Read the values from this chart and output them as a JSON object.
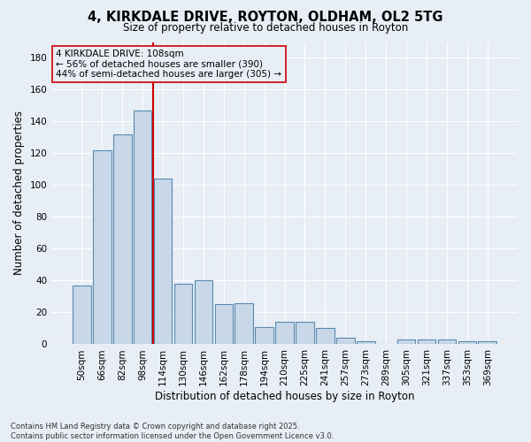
{
  "title_line1": "4, KIRKDALE DRIVE, ROYTON, OLDHAM, OL2 5TG",
  "title_line2": "Size of property relative to detached houses in Royton",
  "xlabel": "Distribution of detached houses by size in Royton",
  "ylabel": "Number of detached properties",
  "categories": [
    "50sqm",
    "66sqm",
    "82sqm",
    "98sqm",
    "114sqm",
    "130sqm",
    "146sqm",
    "162sqm",
    "178sqm",
    "194sqm",
    "210sqm",
    "225sqm",
    "241sqm",
    "257sqm",
    "273sqm",
    "289sqm",
    "305sqm",
    "321sqm",
    "337sqm",
    "353sqm",
    "369sqm"
  ],
  "values": [
    37,
    122,
    132,
    147,
    104,
    38,
    40,
    25,
    26,
    11,
    14,
    14,
    10,
    4,
    2,
    0,
    3,
    3,
    3,
    2,
    2
  ],
  "bar_color": "#c8d8e8",
  "bar_edge_color": "#5a8ab0",
  "annotation_line1": "4 KIRKDALE DRIVE: 108sqm",
  "annotation_line2": "← 56% of detached houses are smaller (390)",
  "annotation_line3": "44% of semi-detached houses are larger (305) →",
  "vline_x": 3.5,
  "vline_color": "#cc0000",
  "box_color": "#cc0000",
  "bg_color": "#e8eef5",
  "grid_color": "#ffffff",
  "footer_line1": "Contains HM Land Registry data © Crown copyright and database right 2025.",
  "footer_line2": "Contains public sector information licensed under the Open Government Licence v3.0.",
  "ylim": [
    0,
    190
  ],
  "yticks": [
    0,
    20,
    40,
    60,
    80,
    100,
    120,
    140,
    160,
    180
  ]
}
